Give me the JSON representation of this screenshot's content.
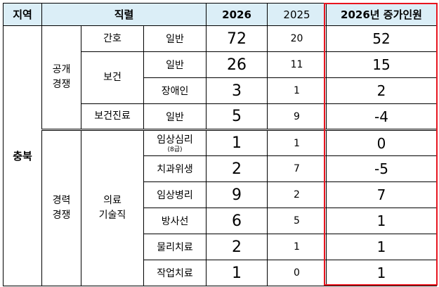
{
  "headers": {
    "region": "지역",
    "job": "직렬",
    "y2026": "2026",
    "y2025": "2025",
    "increase": "2026년 증가인원"
  },
  "region": "충북",
  "groups": {
    "public": "공개\n경쟁",
    "career": "경력\n경쟁",
    "medtech": "의료\n기술직"
  },
  "rows": [
    {
      "cat": "간호",
      "sub": "일반",
      "v2026": "72",
      "v2025": "20",
      "inc": "52"
    },
    {
      "cat": "보건",
      "sub": "일반",
      "v2026": "26",
      "v2025": "11",
      "inc": "15"
    },
    {
      "cat": "",
      "sub": "장애인",
      "v2026": "3",
      "v2025": "1",
      "inc": "2"
    },
    {
      "cat": "보건진료",
      "sub": "일반",
      "v2026": "5",
      "v2025": "9",
      "inc": "-4"
    },
    {
      "cat": "",
      "sub": "임상심리",
      "sub_note": "(8급)",
      "v2026": "1",
      "v2025": "1",
      "inc": "0"
    },
    {
      "cat": "",
      "sub": "치과위생",
      "v2026": "2",
      "v2025": "7",
      "inc": "-5"
    },
    {
      "cat": "",
      "sub": "임상병리",
      "v2026": "9",
      "v2025": "2",
      "inc": "7"
    },
    {
      "cat": "",
      "sub": "방사선",
      "v2026": "6",
      "v2025": "5",
      "inc": "1"
    },
    {
      "cat": "",
      "sub": "물리치료",
      "v2026": "2",
      "v2025": "1",
      "inc": "1"
    },
    {
      "cat": "",
      "sub": "작업치료",
      "v2026": "1",
      "v2025": "0",
      "inc": "1"
    }
  ]
}
